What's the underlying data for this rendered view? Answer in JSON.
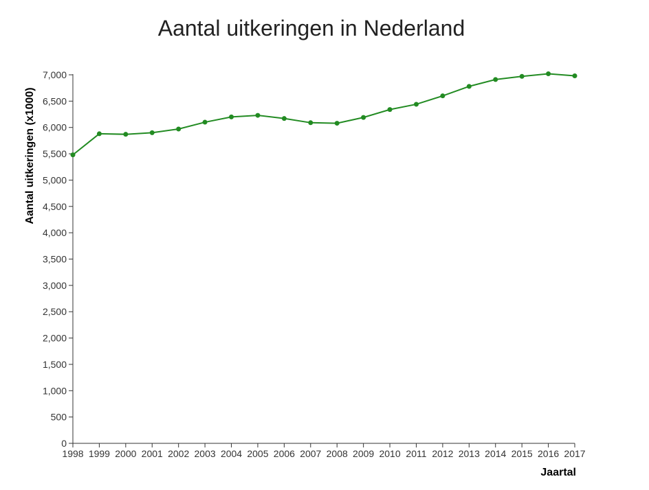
{
  "chart_data": {
    "type": "line",
    "title": "Aantal uitkeringen in Nederland",
    "xlabel": "Jaartal",
    "ylabel": "Aantal uitkeringen (x1000)",
    "ylim": [
      0,
      7000
    ],
    "y_ticks": [
      "0",
      "500",
      "1,000",
      "1,500",
      "2,000",
      "2,500",
      "3,000",
      "3,500",
      "4,000",
      "4,500",
      "5,000",
      "5,500",
      "6,000",
      "6,500",
      "7,000"
    ],
    "y_tick_values": [
      0,
      500,
      1000,
      1500,
      2000,
      2500,
      3000,
      3500,
      4000,
      4500,
      5000,
      5500,
      6000,
      6500,
      7000
    ],
    "categories": [
      "1998",
      "1999",
      "2000",
      "2001",
      "2002",
      "2003",
      "2004",
      "2005",
      "2006",
      "2007",
      "2008",
      "2009",
      "2010",
      "2011",
      "2012",
      "2013",
      "2014",
      "2015",
      "2016",
      "2017"
    ],
    "series": [
      {
        "color": "#228b22",
        "values": [
          5480,
          5880,
          5870,
          5900,
          5970,
          6100,
          6200,
          6230,
          6170,
          6090,
          6080,
          6190,
          6340,
          6440,
          6600,
          6780,
          6910,
          6970,
          7020,
          6980
        ]
      }
    ],
    "grid": false,
    "legend": "none"
  }
}
